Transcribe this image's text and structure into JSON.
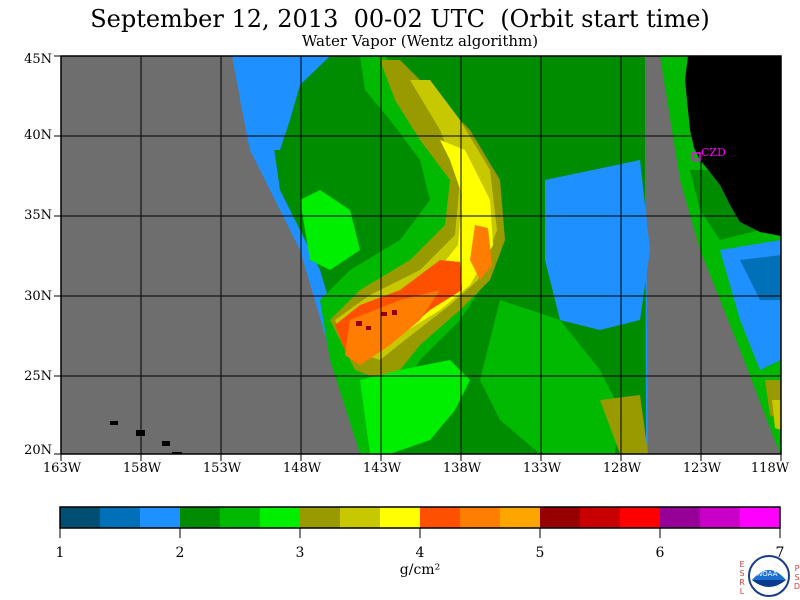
{
  "header": {
    "title": "September 12, 2013  00-02 UTC  (Orbit start time)",
    "subtitle": "Water Vapor (Wentz algorithm)"
  },
  "map": {
    "lat_labels": [
      "45N",
      "40N",
      "35N",
      "30N",
      "25N",
      "20N"
    ],
    "lon_labels": [
      "163W",
      "158W",
      "153W",
      "148W",
      "143W",
      "138W",
      "133W",
      "128W",
      "123W",
      "118W"
    ],
    "station_label": "CZD",
    "colors": {
      "no_data": "#6e6e6e",
      "land": "#000000",
      "station": "#ff00ff"
    }
  },
  "colorbar": {
    "ticks": [
      "1",
      "2",
      "3",
      "4",
      "5",
      "6",
      "7"
    ],
    "units": "g/cm²",
    "colors": [
      "#004e72",
      "#0070b8",
      "#1e90ff",
      "#008c00",
      "#00b900",
      "#00ee00",
      "#999900",
      "#c8c800",
      "#ffff00",
      "#ff5000",
      "#ff7d00",
      "#ffa500",
      "#960000",
      "#c80000",
      "#ff0000",
      "#960096",
      "#c800c8",
      "#ff00ff"
    ]
  },
  "logo": {
    "left_letters": [
      "E",
      "S",
      "R",
      "L"
    ],
    "right_letters": [
      "P",
      "S",
      "D"
    ],
    "seal_text": "NOAA"
  }
}
